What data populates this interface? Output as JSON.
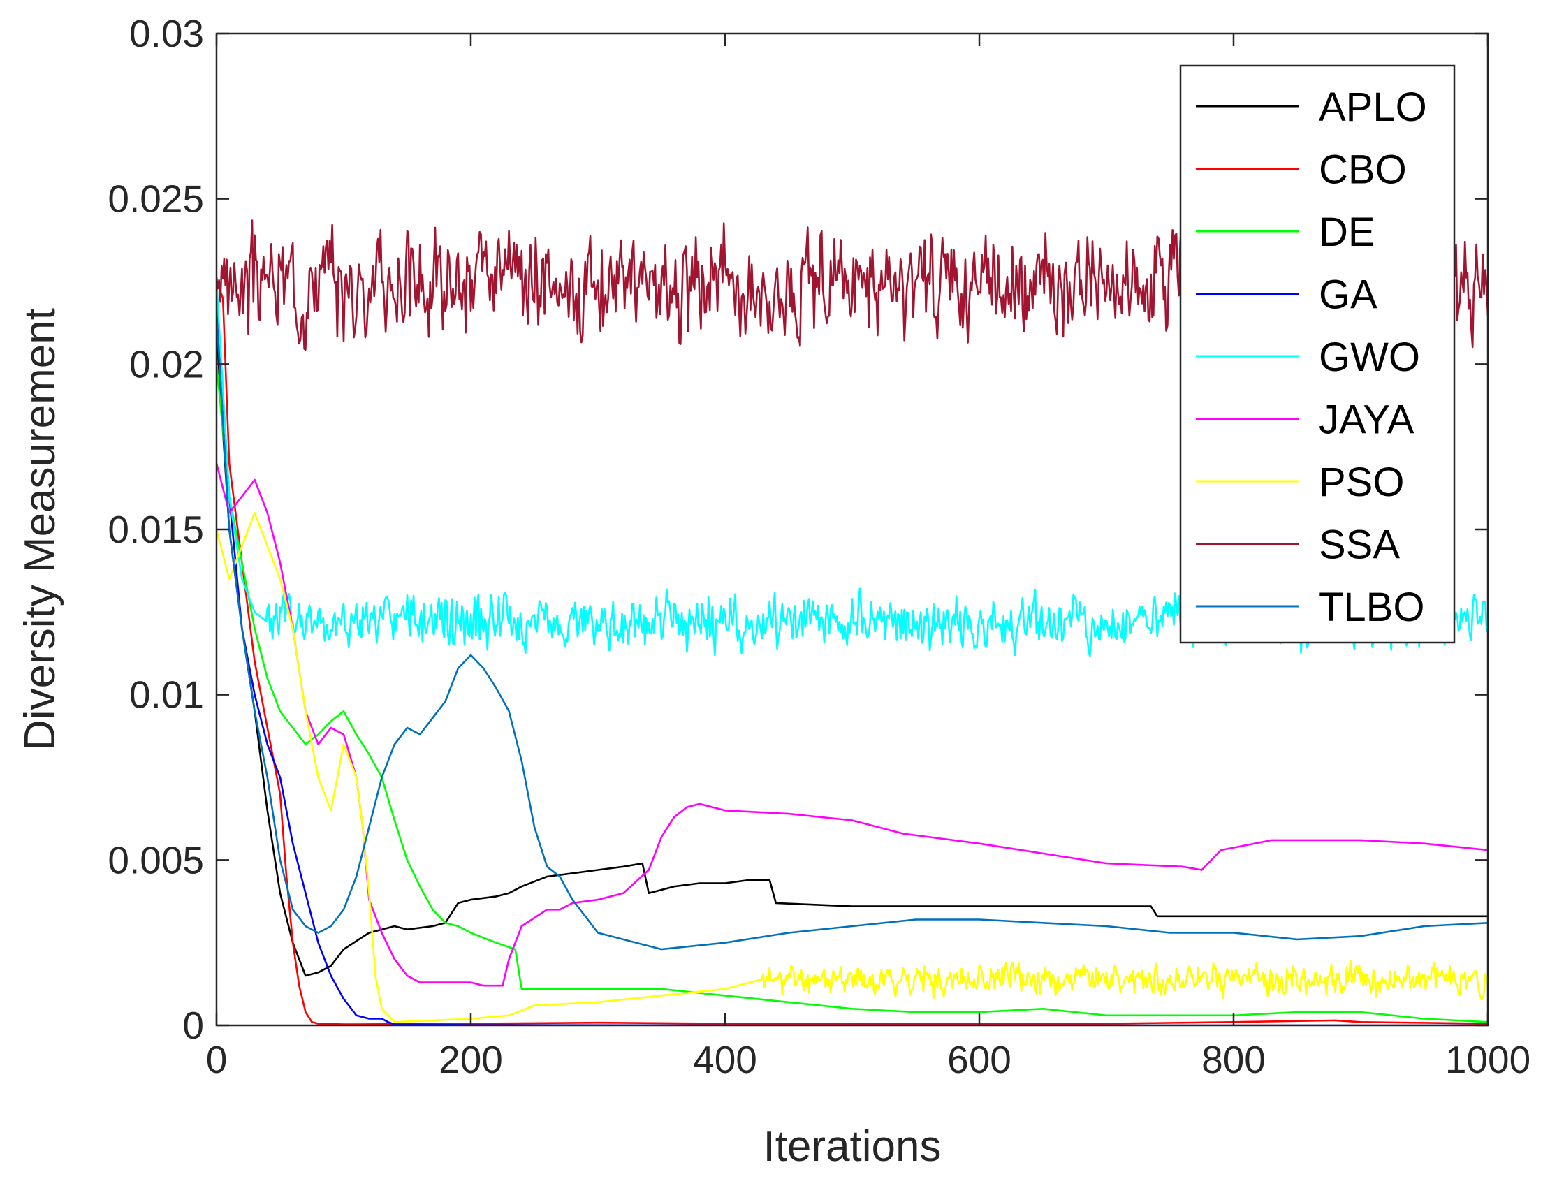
{
  "chart_data": {
    "type": "line",
    "title": "",
    "xlabel": "Iterations",
    "ylabel": "Diversity Measurement",
    "xlim": [
      0,
      1000
    ],
    "ylim": [
      0,
      0.03
    ],
    "xticks": [
      0,
      200,
      400,
      600,
      800,
      1000
    ],
    "xtick_labels": [
      "0",
      "200",
      "400",
      "600",
      "800",
      "1000"
    ],
    "yticks": [
      0,
      0.005,
      0.01,
      0.015,
      0.02,
      0.025,
      0.03
    ],
    "ytick_labels": [
      "0",
      "0.005",
      "0.01",
      "0.015",
      "0.02",
      "0.025",
      "0.03"
    ],
    "grid": false,
    "legend_position": "top-right",
    "series": [
      {
        "name": "APLO",
        "color": "#000000",
        "points": [
          [
            0,
            0.021
          ],
          [
            10,
            0.015
          ],
          [
            20,
            0.012
          ],
          [
            30,
            0.0095
          ],
          [
            40,
            0.0065
          ],
          [
            50,
            0.004
          ],
          [
            60,
            0.0025
          ],
          [
            70,
            0.0015
          ],
          [
            80,
            0.0016
          ],
          [
            90,
            0.0018
          ],
          [
            100,
            0.0023
          ],
          [
            120,
            0.0028
          ],
          [
            140,
            0.003
          ],
          [
            150,
            0.0029
          ],
          [
            170,
            0.003
          ],
          [
            180,
            0.0031
          ],
          [
            190,
            0.0037
          ],
          [
            200,
            0.0038
          ],
          [
            220,
            0.0039
          ],
          [
            230,
            0.004
          ],
          [
            240,
            0.0042
          ],
          [
            260,
            0.0045
          ],
          [
            280,
            0.0046
          ],
          [
            300,
            0.0047
          ],
          [
            320,
            0.0048
          ],
          [
            335,
            0.0049
          ],
          [
            340,
            0.004
          ],
          [
            360,
            0.0042
          ],
          [
            380,
            0.0043
          ],
          [
            400,
            0.0043
          ],
          [
            420,
            0.0044
          ],
          [
            435,
            0.0044
          ],
          [
            440,
            0.0037
          ],
          [
            500,
            0.0036
          ],
          [
            600,
            0.0036
          ],
          [
            700,
            0.0036
          ],
          [
            735,
            0.0036
          ],
          [
            740,
            0.0033
          ],
          [
            800,
            0.0033
          ],
          [
            900,
            0.0033
          ],
          [
            1000,
            0.0033
          ]
        ]
      },
      {
        "name": "CBO",
        "color": "#ff0000",
        "points": [
          [
            0,
            0.0225
          ],
          [
            5,
            0.022
          ],
          [
            10,
            0.017
          ],
          [
            20,
            0.014
          ],
          [
            30,
            0.011
          ],
          [
            40,
            0.009
          ],
          [
            50,
            0.007
          ],
          [
            55,
            0.0045
          ],
          [
            60,
            0.0025
          ],
          [
            65,
            0.0012
          ],
          [
            70,
            0.0004
          ],
          [
            75,
            0.0001
          ],
          [
            80,
            5e-05
          ],
          [
            100,
            3e-05
          ],
          [
            200,
            5e-05
          ],
          [
            300,
            8e-05
          ],
          [
            400,
            5e-05
          ],
          [
            500,
            5e-05
          ],
          [
            600,
            5e-05
          ],
          [
            700,
            5e-05
          ],
          [
            800,
            0.0001
          ],
          [
            880,
            0.00015
          ],
          [
            900,
            0.0001
          ],
          [
            1000,
            5e-05
          ]
        ]
      },
      {
        "name": "DE",
        "color": "#00ff00",
        "points": [
          [
            0,
            0.02
          ],
          [
            10,
            0.016
          ],
          [
            20,
            0.014
          ],
          [
            30,
            0.012
          ],
          [
            40,
            0.0105
          ],
          [
            50,
            0.0095
          ],
          [
            60,
            0.009
          ],
          [
            70,
            0.0085
          ],
          [
            80,
            0.0088
          ],
          [
            90,
            0.0092
          ],
          [
            100,
            0.0095
          ],
          [
            110,
            0.0088
          ],
          [
            120,
            0.0082
          ],
          [
            130,
            0.0075
          ],
          [
            140,
            0.0062
          ],
          [
            150,
            0.005
          ],
          [
            160,
            0.0042
          ],
          [
            170,
            0.0035
          ],
          [
            180,
            0.0031
          ],
          [
            190,
            0.003
          ],
          [
            200,
            0.0028
          ],
          [
            220,
            0.0025
          ],
          [
            235,
            0.0023
          ],
          [
            240,
            0.0011
          ],
          [
            300,
            0.0011
          ],
          [
            350,
            0.0011
          ],
          [
            400,
            0.0009
          ],
          [
            450,
            0.0007
          ],
          [
            500,
            0.0005
          ],
          [
            550,
            0.0004
          ],
          [
            600,
            0.0004
          ],
          [
            650,
            0.0005
          ],
          [
            700,
            0.0003
          ],
          [
            800,
            0.0003
          ],
          [
            850,
            0.0004
          ],
          [
            900,
            0.0004
          ],
          [
            950,
            0.0002
          ],
          [
            1000,
            0.0001
          ]
        ]
      },
      {
        "name": "GA",
        "color": "#0000ff",
        "points": [
          [
            0,
            0.0223
          ],
          [
            10,
            0.016
          ],
          [
            20,
            0.012
          ],
          [
            30,
            0.01
          ],
          [
            40,
            0.0085
          ],
          [
            50,
            0.0075
          ],
          [
            60,
            0.0055
          ],
          [
            70,
            0.004
          ],
          [
            80,
            0.0025
          ],
          [
            90,
            0.0015
          ],
          [
            100,
            0.0008
          ],
          [
            110,
            0.0003
          ],
          [
            120,
            0.0002
          ],
          [
            130,
            0.0002
          ],
          [
            135,
            0.0001
          ],
          [
            140,
            3e-05
          ],
          [
            200,
            1e-05
          ],
          [
            400,
            0
          ],
          [
            600,
            0
          ],
          [
            800,
            0
          ],
          [
            1000,
            0
          ]
        ]
      },
      {
        "name": "GWO",
        "color": "#00ffff",
        "noise": {
          "base": 0.0124,
          "amplitude": 0.0009,
          "start": 40,
          "seed": 5
        },
        "points": [
          [
            0,
            0.0225
          ],
          [
            10,
            0.016
          ],
          [
            20,
            0.0135
          ],
          [
            30,
            0.0125
          ],
          [
            40,
            0.0122
          ],
          [
            1000,
            0.0122
          ]
        ]
      },
      {
        "name": "JAYA",
        "color": "#ff00ff",
        "points": [
          [
            0,
            0.017
          ],
          [
            10,
            0.0155
          ],
          [
            20,
            0.016
          ],
          [
            30,
            0.0165
          ],
          [
            40,
            0.0155
          ],
          [
            50,
            0.014
          ],
          [
            60,
            0.012
          ],
          [
            70,
            0.0095
          ],
          [
            80,
            0.0085
          ],
          [
            90,
            0.009
          ],
          [
            100,
            0.0088
          ],
          [
            110,
            0.0075
          ],
          [
            115,
            0.006
          ],
          [
            120,
            0.0038
          ],
          [
            130,
            0.0028
          ],
          [
            140,
            0.002
          ],
          [
            150,
            0.0015
          ],
          [
            160,
            0.0013
          ],
          [
            200,
            0.0013
          ],
          [
            210,
            0.0012
          ],
          [
            225,
            0.0012
          ],
          [
            230,
            0.002
          ],
          [
            240,
            0.003
          ],
          [
            260,
            0.0035
          ],
          [
            270,
            0.0035
          ],
          [
            280,
            0.0037
          ],
          [
            300,
            0.0038
          ],
          [
            320,
            0.004
          ],
          [
            340,
            0.0047
          ],
          [
            350,
            0.0057
          ],
          [
            360,
            0.0063
          ],
          [
            370,
            0.0066
          ],
          [
            380,
            0.0067
          ],
          [
            400,
            0.0065
          ],
          [
            450,
            0.0064
          ],
          [
            500,
            0.0062
          ],
          [
            540,
            0.0058
          ],
          [
            600,
            0.0055
          ],
          [
            650,
            0.0052
          ],
          [
            700,
            0.0049
          ],
          [
            760,
            0.0048
          ],
          [
            775,
            0.0047
          ],
          [
            790,
            0.0053
          ],
          [
            830,
            0.0056
          ],
          [
            900,
            0.0056
          ],
          [
            950,
            0.0055
          ],
          [
            1000,
            0.0053
          ]
        ]
      },
      {
        "name": "PSO",
        "color": "#ffff00",
        "noise": {
          "base": 0.0016,
          "amplitude": 0.0005,
          "start": 430,
          "seed": 11
        },
        "points": [
          [
            0,
            0.015
          ],
          [
            10,
            0.0135
          ],
          [
            20,
            0.0145
          ],
          [
            30,
            0.0155
          ],
          [
            40,
            0.0145
          ],
          [
            50,
            0.0135
          ],
          [
            60,
            0.012
          ],
          [
            70,
            0.0095
          ],
          [
            80,
            0.0075
          ],
          [
            90,
            0.0065
          ],
          [
            100,
            0.0085
          ],
          [
            110,
            0.0075
          ],
          [
            115,
            0.006
          ],
          [
            120,
            0.004
          ],
          [
            125,
            0.0015
          ],
          [
            130,
            0.0005
          ],
          [
            140,
            0.0001
          ],
          [
            200,
            0.0002
          ],
          [
            230,
            0.0003
          ],
          [
            250,
            0.0006
          ],
          [
            300,
            0.0007
          ],
          [
            350,
            0.0009
          ],
          [
            400,
            0.0011
          ],
          [
            430,
            0.0014
          ],
          [
            1000,
            0.0014
          ]
        ]
      },
      {
        "name": "SSA",
        "color": "#a2142f",
        "noise": {
          "base": 0.0223,
          "amplitude": 0.0017,
          "start": 0,
          "seed": 3
        },
        "points": [
          [
            0,
            0.0225
          ],
          [
            1000,
            0.0223
          ]
        ]
      },
      {
        "name": "TLBO",
        "color": "#0072bd",
        "points": [
          [
            0,
            0.0215
          ],
          [
            10,
            0.015
          ],
          [
            20,
            0.012
          ],
          [
            30,
            0.0095
          ],
          [
            40,
            0.0075
          ],
          [
            50,
            0.005
          ],
          [
            60,
            0.0035
          ],
          [
            70,
            0.003
          ],
          [
            80,
            0.0028
          ],
          [
            90,
            0.003
          ],
          [
            100,
            0.0035
          ],
          [
            110,
            0.0045
          ],
          [
            120,
            0.006
          ],
          [
            130,
            0.0075
          ],
          [
            140,
            0.0085
          ],
          [
            150,
            0.009
          ],
          [
            160,
            0.0088
          ],
          [
            170,
            0.0093
          ],
          [
            180,
            0.0098
          ],
          [
            190,
            0.0108
          ],
          [
            200,
            0.0112
          ],
          [
            210,
            0.0108
          ],
          [
            220,
            0.0102
          ],
          [
            230,
            0.0095
          ],
          [
            240,
            0.008
          ],
          [
            250,
            0.006
          ],
          [
            260,
            0.0048
          ],
          [
            270,
            0.0045
          ],
          [
            280,
            0.0038
          ],
          [
            290,
            0.0033
          ],
          [
            300,
            0.0028
          ],
          [
            350,
            0.0023
          ],
          [
            400,
            0.0025
          ],
          [
            450,
            0.0028
          ],
          [
            500,
            0.003
          ],
          [
            550,
            0.0032
          ],
          [
            600,
            0.0032
          ],
          [
            650,
            0.0031
          ],
          [
            700,
            0.003
          ],
          [
            750,
            0.0028
          ],
          [
            800,
            0.0028
          ],
          [
            850,
            0.0026
          ],
          [
            900,
            0.0027
          ],
          [
            950,
            0.003
          ],
          [
            1000,
            0.0031
          ]
        ]
      }
    ]
  }
}
